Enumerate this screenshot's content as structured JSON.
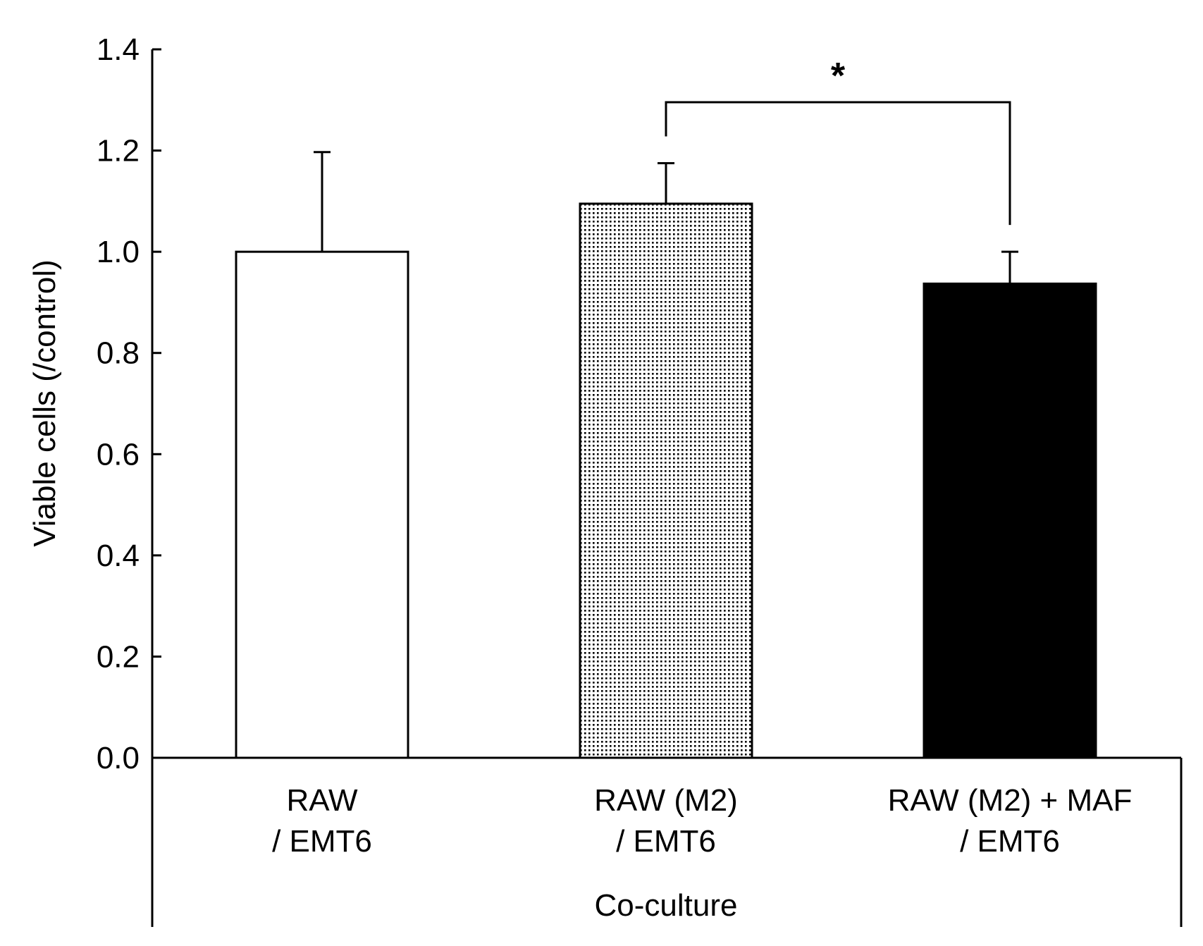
{
  "chart_data": {
    "type": "bar",
    "title": "",
    "ylabel": "Viable cells (/control)",
    "xlabel": "Co-culture",
    "ylim": [
      0,
      1.4
    ],
    "yticks": [
      0.0,
      0.2,
      0.4,
      0.6,
      0.8,
      1.0,
      1.2,
      1.4
    ],
    "ytick_labels": [
      "0.0",
      "0.2",
      "0.4",
      "0.6",
      "0.8",
      "1.0",
      "1.2",
      "1.4"
    ],
    "categories": [
      {
        "line1": "RAW",
        "line2": "/ EMT6"
      },
      {
        "line1": "RAW (M2)",
        "line2": "/ EMT6"
      },
      {
        "line1": "RAW (M2) + MAF",
        "line2": "/ EMT6"
      }
    ],
    "values": [
      1.0,
      1.095,
      0.937
    ],
    "errors": [
      0.197,
      0.08,
      0.063
    ],
    "fills": [
      "white",
      "dotted",
      "black"
    ],
    "colors": {
      "stroke": "#000000",
      "white": "#ffffff",
      "black": "#000000",
      "dot": "#000000",
      "dot_bg": "#ffffff"
    },
    "grid": false,
    "significance": {
      "between": [
        1,
        2
      ],
      "label": "*"
    }
  }
}
